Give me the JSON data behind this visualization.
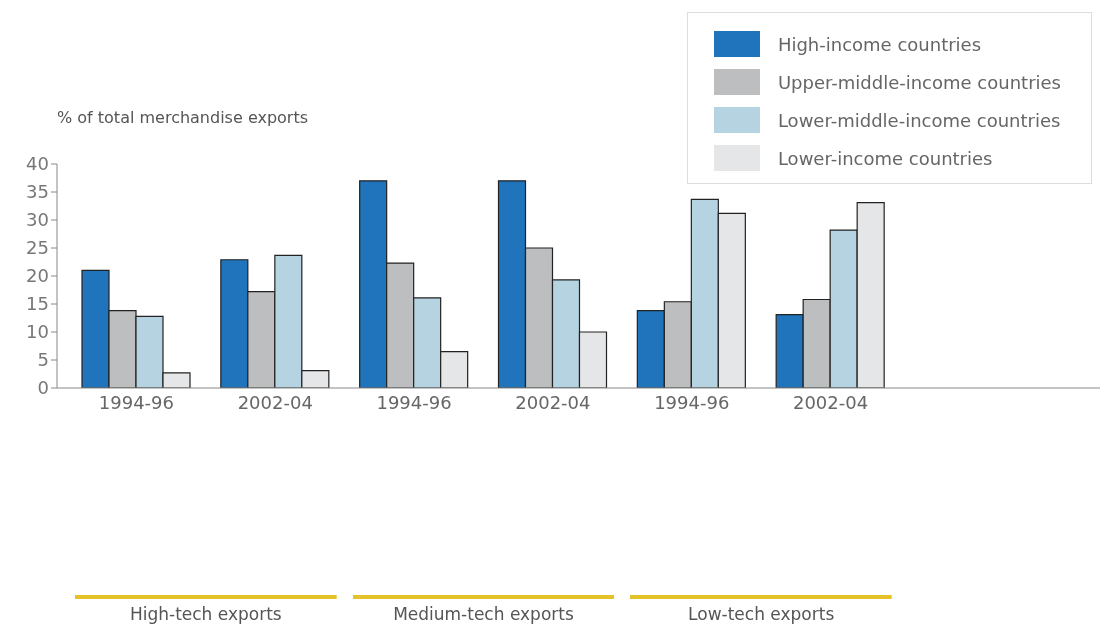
{
  "chart_data": {
    "type": "bar",
    "ylabel": "% of total merchandise exports",
    "categories": [
      "1994-96",
      "2002-04",
      "1994-96",
      "2002-04",
      "1994-96",
      "2002-04"
    ],
    "series": [
      {
        "name": "High-income countries",
        "color": "#1f74bb",
        "values": [
          21,
          22.9,
          37,
          37,
          13.8,
          13.1
        ]
      },
      {
        "name": "Upper-middle-income countries",
        "color": "#bdbec0",
        "values": [
          13.8,
          17.2,
          22.3,
          25,
          15.4,
          15.8
        ]
      },
      {
        "name": "Lower-middle-income countries",
        "color": "#b5d3e0",
        "values": [
          12.8,
          23.7,
          16.1,
          19.3,
          33.7,
          28.2
        ]
      },
      {
        "name": "Lower-income countries",
        "color": "#e5e6e8",
        "values": [
          2.7,
          3.1,
          6.5,
          10,
          31.2,
          33.1
        ]
      }
    ],
    "annotations": [
      "High-tech exports",
      "Medium-tech exports",
      "Low-tech exports"
    ],
    "ylim": [
      0,
      40
    ],
    "yticks": [
      0,
      5,
      10,
      15,
      20,
      25,
      30,
      35,
      40
    ],
    "grid": false,
    "legend": "top right"
  }
}
